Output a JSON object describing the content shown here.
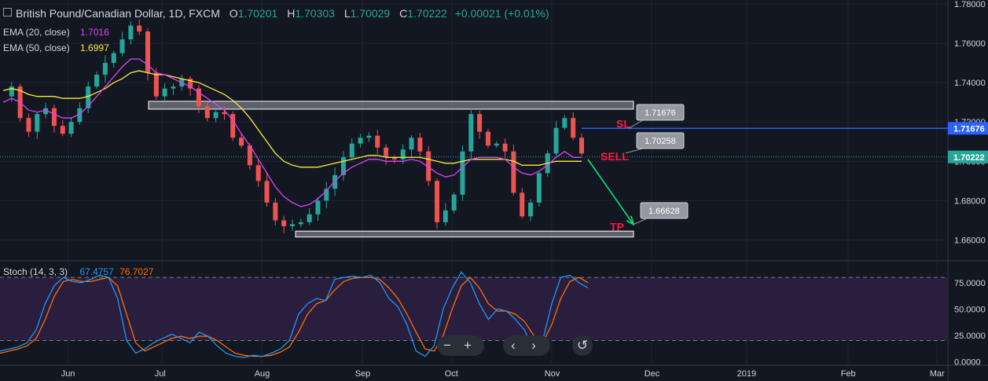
{
  "header": {
    "title": "British Pound/Canadian Dollar, 1D, FXCM",
    "o_label": "O",
    "o": "1.70201",
    "h_label": "H",
    "h": "1.70303",
    "l_label": "L",
    "l": "1.70029",
    "c_label": "C",
    "c": "1.70222",
    "change": "+0.00021 (+0.01%)"
  },
  "indicators": {
    "ema20": {
      "label": "EMA (20, close)",
      "value": "1.7016",
      "color": "#e040fb"
    },
    "ema50": {
      "label": "EMA (50, close)",
      "value": "1.6997",
      "color": "#ffeb3b"
    }
  },
  "stoch": {
    "label": "Stoch (14, 3, 3)",
    "k": "67.4757",
    "d": "76.7027",
    "k_color": "#2196f3",
    "d_color": "#ff6d00"
  },
  "price_axis": {
    "ticks": [
      "1.78000",
      "1.76000",
      "1.74000",
      "1.72000",
      "1.70000",
      "1.68000",
      "1.66000"
    ],
    "current": "1.70222",
    "line_price": "1.71676"
  },
  "stoch_axis": {
    "ticks": [
      "75.0000",
      "50.0000",
      "25.0000",
      "0.0000"
    ]
  },
  "time_axis": {
    "ticks": [
      "Jun",
      "Jul",
      "Aug",
      "Sep",
      "Oct",
      "Nov",
      "Dec",
      "2019",
      "Feb",
      "Mar"
    ]
  },
  "annotations": {
    "sl_label": "SL",
    "sl_price": "1.71676",
    "sell_label": "SELL",
    "sell_price": "1.70258",
    "tp_label": "TP",
    "tp_price": "1.66628"
  },
  "controls": {
    "zoom_out": "−",
    "zoom_in": "+",
    "back": "‹",
    "forward": "›",
    "reset": "↺"
  },
  "colors": {
    "up": "#26a69a",
    "down": "#ef5350",
    "background": "#131722",
    "stoch_band": "#2a1e3f"
  },
  "chart_data": {
    "type": "candlestick",
    "title": "British Pound/Canadian Dollar, 1D, FXCM",
    "ylim": [
      1.653,
      1.782
    ],
    "x_ticks": [
      "Jun",
      "Jul",
      "Aug",
      "Sep",
      "Oct",
      "Nov",
      "Dec",
      "2019",
      "Feb",
      "Mar"
    ],
    "price_close_path": [
      1.733,
      1.738,
      1.722,
      1.715,
      1.724,
      1.727,
      1.718,
      1.714,
      1.72,
      1.727,
      1.738,
      1.744,
      1.75,
      1.755,
      1.762,
      1.769,
      1.766,
      1.745,
      1.733,
      1.737,
      1.738,
      1.742,
      1.737,
      1.728,
      1.722,
      1.725,
      1.724,
      1.712,
      1.708,
      1.698,
      1.69,
      1.679,
      1.67,
      1.667,
      1.668,
      1.669,
      1.673,
      1.68,
      1.686,
      1.693,
      1.702,
      1.709,
      1.712,
      1.713,
      1.707,
      1.702,
      1.701,
      1.706,
      1.712,
      1.705,
      1.69,
      1.669,
      1.675,
      1.683,
      1.705,
      1.724,
      1.715,
      1.708,
      1.709,
      1.705,
      1.684,
      1.672,
      1.679,
      1.694,
      1.704,
      1.717,
      1.722,
      1.712,
      1.704
    ],
    "ema20_path": [
      1.73,
      1.732,
      1.73,
      1.726,
      1.725,
      1.726,
      1.724,
      1.722,
      1.722,
      1.724,
      1.728,
      1.733,
      1.738,
      1.743,
      1.748,
      1.752,
      1.752,
      1.749,
      1.745,
      1.744,
      1.742,
      1.74,
      1.738,
      1.735,
      1.732,
      1.729,
      1.726,
      1.721,
      1.714,
      1.708,
      1.701,
      1.694,
      1.687,
      1.682,
      1.679,
      1.677,
      1.678,
      1.681,
      1.685,
      1.69,
      1.694,
      1.697,
      1.699,
      1.701,
      1.701,
      1.7,
      1.7,
      1.7,
      1.701,
      1.7,
      1.697,
      1.694,
      1.692,
      1.693,
      1.697,
      1.701,
      1.702,
      1.702,
      1.702,
      1.701,
      1.697,
      1.694,
      1.693,
      1.695,
      1.698,
      1.702,
      1.705,
      1.702,
      1.702
    ],
    "ema50_path": [
      1.736,
      1.737,
      1.736,
      1.734,
      1.733,
      1.733,
      1.733,
      1.732,
      1.732,
      1.732,
      1.733,
      1.735,
      1.737,
      1.74,
      1.742,
      1.745,
      1.746,
      1.745,
      1.744,
      1.744,
      1.743,
      1.742,
      1.741,
      1.74,
      1.738,
      1.736,
      1.734,
      1.731,
      1.727,
      1.722,
      1.716,
      1.71,
      1.704,
      1.7,
      1.698,
      1.697,
      1.697,
      1.697,
      1.698,
      1.699,
      1.7,
      1.701,
      1.702,
      1.703,
      1.703,
      1.702,
      1.702,
      1.702,
      1.702,
      1.702,
      1.701,
      1.7,
      1.699,
      1.699,
      1.7,
      1.701,
      1.701,
      1.701,
      1.701,
      1.701,
      1.7,
      1.698,
      1.698,
      1.698,
      1.699,
      1.7,
      1.7,
      1.7,
      1.7
    ],
    "stoch_k_path": [
      10,
      12,
      14,
      18,
      30,
      55,
      72,
      80,
      76,
      75,
      78,
      82,
      80,
      60,
      20,
      8,
      12,
      18,
      22,
      26,
      22,
      18,
      28,
      24,
      15,
      8,
      5,
      4,
      6,
      5,
      8,
      12,
      20,
      45,
      55,
      60,
      58,
      78,
      80,
      81,
      80,
      82,
      75,
      60,
      52,
      35,
      10,
      5,
      15,
      50,
      70,
      85,
      75,
      55,
      40,
      50,
      48,
      40,
      30,
      10,
      20,
      55,
      80,
      82,
      75,
      70
    ],
    "stoch_d_path": [
      8,
      10,
      12,
      15,
      22,
      40,
      62,
      76,
      78,
      76,
      76,
      78,
      80,
      72,
      45,
      18,
      10,
      14,
      18,
      22,
      24,
      22,
      24,
      24,
      20,
      14,
      8,
      6,
      5,
      5,
      6,
      9,
      14,
      28,
      45,
      55,
      58,
      68,
      76,
      79,
      80,
      80,
      78,
      70,
      60,
      45,
      28,
      12,
      10,
      25,
      50,
      72,
      80,
      70,
      55,
      48,
      48,
      45,
      38,
      25,
      18,
      35,
      60,
      76,
      80,
      75
    ],
    "resistance_zone": [
      1.7265,
      1.7305
    ],
    "support_zone": [
      1.6615,
      1.6645
    ],
    "stoch_levels": [
      80,
      20
    ],
    "trade": {
      "side": "SELL",
      "entry": 1.70258,
      "stop_loss": 1.71676,
      "take_profit": 1.66628
    },
    "stoch_ylim": [
      -2,
      92
    ]
  }
}
